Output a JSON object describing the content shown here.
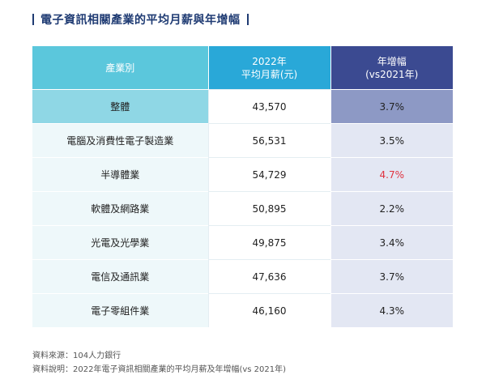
{
  "title": "電子資訊相關產業的平均月薪與年增幅",
  "table": {
    "headers": {
      "col1": "產業別",
      "col2_line1": "2022年",
      "col2_line2": "平均月薪(元)",
      "col3_line1": "年增幅",
      "col3_line2": "(vs2021年)"
    },
    "rows": [
      {
        "category": "整體",
        "salary": "43,570",
        "growth": "3.7%"
      },
      {
        "category": "電腦及消費性電子製造業",
        "salary": "56,531",
        "growth": "3.5%"
      },
      {
        "category": "半導體業",
        "salary": "54,729",
        "growth": "4.7%"
      },
      {
        "category": "軟體及網路業",
        "salary": "50,895",
        "growth": "2.2%"
      },
      {
        "category": "光電及光學業",
        "salary": "49,875",
        "growth": "3.4%"
      },
      {
        "category": "電信及通訊業",
        "salary": "47,636",
        "growth": "3.7%"
      },
      {
        "category": "電子零組件業",
        "salary": "46,160",
        "growth": "4.3%"
      }
    ]
  },
  "notes": {
    "source": "資料來源：104人力銀行",
    "explanation": "資料說明：2022年電子資訊相關產業的平均月薪及年增幅(vs 2021年)"
  },
  "colors": {
    "header_col1": "#5bc7dc",
    "header_col2": "#29a8d8",
    "header_col3": "#3b4a91",
    "highlight_text": "#e0323f",
    "title": "#1f3b73"
  }
}
